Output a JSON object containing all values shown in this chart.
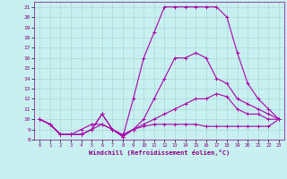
{
  "xlabel": "Windchill (Refroidissement éolien,°C)",
  "bg_color": "#c8f0f0",
  "grid_color": "#a8dada",
  "line_color": "#aa00aa",
  "xlim": [
    -0.5,
    23.5
  ],
  "ylim": [
    8,
    21.5
  ],
  "xticks": [
    0,
    1,
    2,
    3,
    4,
    5,
    6,
    7,
    8,
    9,
    10,
    11,
    12,
    13,
    14,
    15,
    16,
    17,
    18,
    19,
    20,
    21,
    22,
    23
  ],
  "yticks": [
    8,
    9,
    10,
    11,
    12,
    13,
    14,
    15,
    16,
    17,
    18,
    19,
    20,
    21
  ],
  "series": [
    {
      "x": [
        0,
        1,
        2,
        3,
        4,
        5,
        6,
        7,
        8,
        9,
        10,
        11,
        12,
        13,
        14,
        15,
        16,
        17,
        18,
        19,
        20,
        21,
        22,
        23
      ],
      "y": [
        10,
        9.5,
        8.5,
        8.5,
        8.5,
        9,
        10.5,
        9,
        8.3,
        9,
        10,
        12,
        14,
        16,
        16,
        16.5,
        16,
        14,
        13.5,
        12,
        11.5,
        11,
        10.5,
        10
      ]
    },
    {
      "x": [
        0,
        1,
        2,
        3,
        4,
        5,
        6,
        7,
        8,
        9,
        10,
        11,
        12,
        13,
        14,
        15,
        16,
        17,
        18,
        19,
        20,
        21,
        22,
        23
      ],
      "y": [
        10,
        9.5,
        8.5,
        8.5,
        9,
        9.5,
        9.5,
        9,
        8.5,
        9,
        9.5,
        10,
        10.5,
        11,
        11.5,
        12,
        12,
        12.5,
        12.2,
        11,
        10.5,
        10.5,
        10,
        10
      ]
    },
    {
      "x": [
        0,
        1,
        2,
        3,
        4,
        5,
        6,
        7,
        8,
        9,
        10,
        11,
        12,
        13,
        14,
        15,
        16,
        17,
        18,
        19,
        20,
        21,
        22,
        23
      ],
      "y": [
        10,
        9.5,
        8.5,
        8.5,
        8.5,
        9,
        9.5,
        9,
        8.3,
        9,
        9.3,
        9.5,
        9.5,
        9.5,
        9.5,
        9.5,
        9.3,
        9.3,
        9.3,
        9.3,
        9.3,
        9.3,
        9.3,
        10
      ]
    },
    {
      "x": [
        0,
        1,
        2,
        3,
        4,
        5,
        6,
        7,
        8,
        9,
        10,
        11,
        12,
        13,
        14,
        15,
        16,
        17,
        18,
        19,
        20,
        21,
        22,
        23
      ],
      "y": [
        10,
        9.5,
        8.5,
        8.5,
        8.5,
        9,
        10.5,
        9,
        8.3,
        12,
        16,
        18.5,
        21,
        21,
        21,
        21,
        21,
        21,
        20,
        16.5,
        13.5,
        12,
        11,
        10
      ]
    }
  ]
}
